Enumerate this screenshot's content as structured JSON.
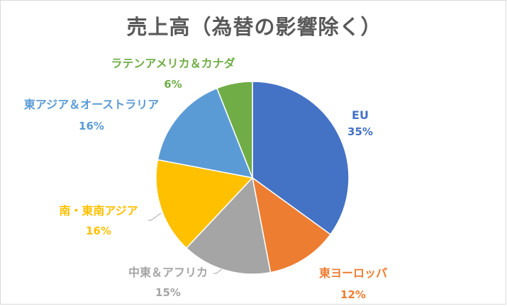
{
  "chart_data": {
    "type": "pie",
    "title": "売上高（為替の影響除く）",
    "slices": [
      {
        "label": "EU",
        "value": 35,
        "value_label": "35%",
        "color": "#4472c4"
      },
      {
        "label": "東ヨーロッパ",
        "value": 12,
        "value_label": "12%",
        "color": "#ed7d31"
      },
      {
        "label": "中東＆アフリカ",
        "value": 15,
        "value_label": "15%",
        "color": "#a5a5a5"
      },
      {
        "label": "南・東南アジア",
        "value": 16,
        "value_label": "16%",
        "color": "#ffc000"
      },
      {
        "label": "東アジア＆オーストラリア",
        "value": 16,
        "value_label": "16%",
        "color": "#5b9bd5"
      },
      {
        "label": "ラテンアメリカ＆カナダ",
        "value": 6,
        "value_label": "6%",
        "color": "#70ad47"
      }
    ],
    "start_angle_deg": 0,
    "direction": "clockwise",
    "legend": "none"
  }
}
